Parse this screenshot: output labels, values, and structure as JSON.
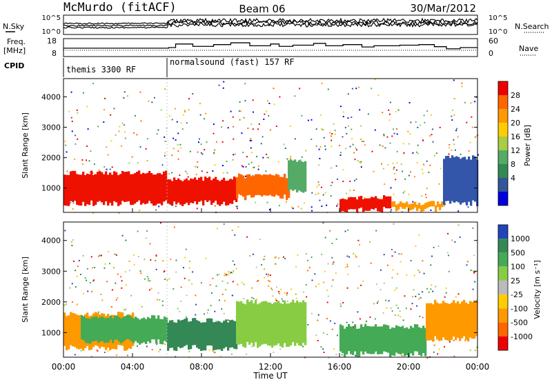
{
  "header": {
    "station": "McMurdo (fitACF)",
    "beam": "Beam 06",
    "date": "30/Mar/2012"
  },
  "panel_labels": {
    "nsky": "N.Sky",
    "nsearch": "N.Search",
    "freq_line1": "Freq.",
    "freq_line2": "[MHz]",
    "nave": "Nave",
    "cpid": "CPID"
  },
  "cpid_segments": [
    {
      "label": "themis 3300 RF",
      "start_hour": 0,
      "end_hour": 6
    },
    {
      "label": "normalsound (fast) 157 RF",
      "start_hour": 6,
      "end_hour": 24
    }
  ],
  "time_axis": {
    "ticks": [
      "00:00",
      "04:00",
      "08:00",
      "12:00",
      "16:00",
      "20:00",
      "00:00"
    ],
    "tick_hours": [
      0,
      4,
      8,
      12,
      16,
      20,
      24
    ],
    "label": "Time UT"
  },
  "chart_data": [
    {
      "type": "line",
      "name": "noise",
      "left_axis": {
        "label": "N.Sky",
        "ticks": [
          "10^5",
          "10^0"
        ]
      },
      "right_axis": {
        "label": "N.Search",
        "ticks": [
          "10^5",
          "10^0"
        ]
      },
      "x_range_hours": [
        0,
        24
      ]
    },
    {
      "type": "line",
      "name": "frequency-nave",
      "left_axis": {
        "label": "Freq. [MHz]",
        "ticks": [
          "18",
          "8"
        ],
        "ylim": [
          8,
          18
        ]
      },
      "right_axis": {
        "label": "Nave",
        "ticks": [
          "60",
          "0"
        ],
        "ylim": [
          0,
          60
        ]
      },
      "x_range_hours": [
        0,
        24
      ],
      "freq_level_mhz": 11.5,
      "nave_steps": [
        {
          "h": 0,
          "v": 28
        },
        {
          "h": 6.1,
          "v": 30
        },
        {
          "h": 6.5,
          "v": 42
        },
        {
          "h": 7.5,
          "v": 34
        },
        {
          "h": 8.7,
          "v": 40
        },
        {
          "h": 9.7,
          "v": 46
        },
        {
          "h": 10.8,
          "v": 36
        },
        {
          "h": 12,
          "v": 42
        },
        {
          "h": 12.5,
          "v": 34
        },
        {
          "h": 13.3,
          "v": 38
        },
        {
          "h": 14.5,
          "v": 44
        },
        {
          "h": 15.2,
          "v": 36
        },
        {
          "h": 16.2,
          "v": 40
        },
        {
          "h": 17.3,
          "v": 32
        },
        {
          "h": 18,
          "v": 36
        },
        {
          "h": 19.5,
          "v": 38
        },
        {
          "h": 20.6,
          "v": 40
        },
        {
          "h": 21.5,
          "v": 33
        },
        {
          "h": 22.2,
          "v": 26
        },
        {
          "h": 23,
          "v": 30
        },
        {
          "h": 24,
          "v": 30
        }
      ]
    },
    {
      "type": "heatmap",
      "name": "power",
      "ylabel": "Slant Range [km]",
      "yticks": [
        1000,
        2000,
        3000,
        4000
      ],
      "ylim": [
        200,
        4600
      ],
      "x_range_hours": [
        0,
        24
      ],
      "colorbar": {
        "label": "Power [dB]",
        "ticks": [
          "28",
          "24",
          "20",
          "16",
          "12",
          "8",
          "4"
        ],
        "colors": [
          "#ee0000",
          "#ff6600",
          "#ff9900",
          "#ffcc00",
          "#aacc44",
          "#55aa66",
          "#338855",
          "#335599",
          "#0000dd"
        ]
      },
      "bands": [
        {
          "h0": 0,
          "h1": 6,
          "r0": 500,
          "r1": 1500,
          "c": "#ee1100"
        },
        {
          "h0": 6,
          "h1": 10,
          "r0": 500,
          "r1": 1300,
          "c": "#ee1100"
        },
        {
          "h0": 10,
          "h1": 13,
          "r0": 700,
          "r1": 1400,
          "c": "#ff6600"
        },
        {
          "h0": 13,
          "h1": 14,
          "r0": 900,
          "r1": 1900,
          "c": "#55aa66"
        },
        {
          "h0": 16,
          "h1": 19,
          "r0": 300,
          "r1": 700,
          "c": "#ee1100"
        },
        {
          "h0": 19,
          "h1": 22,
          "r0": 300,
          "r1": 500,
          "c": "#ff9900"
        },
        {
          "h0": 22,
          "h1": 24,
          "r0": 500,
          "r1": 2000,
          "c": "#3355aa"
        }
      ]
    },
    {
      "type": "heatmap",
      "name": "velocity",
      "ylabel": "Slant Range [km]",
      "yticks": [
        1000,
        2000,
        3000,
        4000
      ],
      "ylim": [
        200,
        4600
      ],
      "x_range_hours": [
        0,
        24
      ],
      "colorbar": {
        "label": "Velocity [m s⁻¹]",
        "ticks": [
          "1000",
          "500",
          "100",
          "25",
          "-25",
          "-100",
          "-500",
          "-1000"
        ],
        "colors": [
          "#2244bb",
          "#338855",
          "#44aa55",
          "#88cc44",
          "#bbbbbb",
          "#ffcc00",
          "#ff9900",
          "#ff6600",
          "#ee0000"
        ]
      },
      "bands": [
        {
          "h0": 0,
          "h1": 4,
          "r0": 500,
          "r1": 1600,
          "c": "#ff9900"
        },
        {
          "h0": 1,
          "h1": 6,
          "r0": 700,
          "r1": 1500,
          "c": "#44aa55"
        },
        {
          "h0": 6,
          "h1": 10,
          "r0": 500,
          "r1": 1400,
          "c": "#338855"
        },
        {
          "h0": 10,
          "h1": 14,
          "r0": 600,
          "r1": 2000,
          "c": "#88cc44"
        },
        {
          "h0": 16,
          "h1": 21,
          "r0": 300,
          "r1": 1200,
          "c": "#44aa55"
        },
        {
          "h0": 21,
          "h1": 24,
          "r0": 800,
          "r1": 2000,
          "c": "#ff9900"
        }
      ]
    }
  ]
}
